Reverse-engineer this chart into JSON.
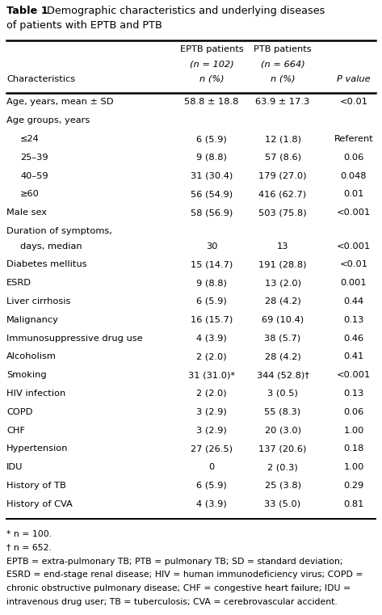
{
  "title_bold": "Table 1",
  "title_rest": "Demographic characteristics and underlying diseases\nof patients with EPTB and PTB",
  "col_headers_line1": [
    "EPTB patients",
    "PTB patients",
    ""
  ],
  "col_headers_line2": [
    "(n = 102)",
    "(n = 664)",
    ""
  ],
  "col_headers_line3": [
    "n (%)",
    "n (%)",
    "P value"
  ],
  "col_label": "Characteristics",
  "rows": [
    {
      "label": "Age, years, mean ± SD",
      "indent": 0,
      "eptb": "58.8 ± 18.8",
      "ptb": "63.9 ± 17.3",
      "pval": "<0.01",
      "multiline": false,
      "group_header": false
    },
    {
      "label": "Age groups, years",
      "indent": 0,
      "eptb": "",
      "ptb": "",
      "pval": "",
      "multiline": false,
      "group_header": true
    },
    {
      "label": "≤24",
      "indent": 1,
      "eptb": "6 (5.9)",
      "ptb": "12 (1.8)",
      "pval": "Referent",
      "multiline": false,
      "group_header": false
    },
    {
      "label": "25–39",
      "indent": 1,
      "eptb": "9 (8.8)",
      "ptb": "57 (8.6)",
      "pval": "0.06",
      "multiline": false,
      "group_header": false
    },
    {
      "label": "40–59",
      "indent": 1,
      "eptb": "31 (30.4)",
      "ptb": "179 (27.0)",
      "pval": "0.048",
      "multiline": false,
      "group_header": false
    },
    {
      "label": "≥60",
      "indent": 1,
      "eptb": "56 (54.9)",
      "ptb": "416 (62.7)",
      "pval": "0.01",
      "multiline": false,
      "group_header": false
    },
    {
      "label": "Male sex",
      "indent": 0,
      "eptb": "58 (56.9)",
      "ptb": "503 (75.8)",
      "pval": "<0.001",
      "multiline": false,
      "group_header": false
    },
    {
      "label": "Duration of symptoms,",
      "label2": "   days, median",
      "indent": 0,
      "eptb": "30",
      "ptb": "13",
      "pval": "<0.001",
      "multiline": true,
      "group_header": false
    },
    {
      "label": "Diabetes mellitus",
      "indent": 0,
      "eptb": "15 (14.7)",
      "ptb": "191 (28.8)",
      "pval": "<0.01",
      "multiline": false,
      "group_header": false
    },
    {
      "label": "ESRD",
      "indent": 0,
      "eptb": "9 (8.8)",
      "ptb": "13 (2.0)",
      "pval": "0.001",
      "multiline": false,
      "group_header": false
    },
    {
      "label": "Liver cirrhosis",
      "indent": 0,
      "eptb": "6 (5.9)",
      "ptb": "28 (4.2)",
      "pval": "0.44",
      "multiline": false,
      "group_header": false
    },
    {
      "label": "Malignancy",
      "indent": 0,
      "eptb": "16 (15.7)",
      "ptb": "69 (10.4)",
      "pval": "0.13",
      "multiline": false,
      "group_header": false
    },
    {
      "label": "Immunosuppressive drug use",
      "indent": 0,
      "eptb": "4 (3.9)",
      "ptb": "38 (5.7)",
      "pval": "0.46",
      "multiline": false,
      "group_header": false
    },
    {
      "label": "Alcoholism",
      "indent": 0,
      "eptb": "2 (2.0)",
      "ptb": "28 (4.2)",
      "pval": "0.41",
      "multiline": false,
      "group_header": false
    },
    {
      "label": "Smoking",
      "indent": 0,
      "eptb": "31 (31.0)*",
      "ptb": "344 (52.8)†",
      "pval": "<0.001",
      "multiline": false,
      "group_header": false
    },
    {
      "label": "HIV infection",
      "indent": 0,
      "eptb": "2 (2.0)",
      "ptb": "3 (0.5)",
      "pval": "0.13",
      "multiline": false,
      "group_header": false
    },
    {
      "label": "COPD",
      "indent": 0,
      "eptb": "3 (2.9)",
      "ptb": "55 (8.3)",
      "pval": "0.06",
      "multiline": false,
      "group_header": false
    },
    {
      "label": "CHF",
      "indent": 0,
      "eptb": "3 (2.9)",
      "ptb": "20 (3.0)",
      "pval": "1.00",
      "multiline": false,
      "group_header": false
    },
    {
      "label": "Hypertension",
      "indent": 0,
      "eptb": "27 (26.5)",
      "ptb": "137 (20.6)",
      "pval": "0.18",
      "multiline": false,
      "group_header": false
    },
    {
      "label": "IDU",
      "indent": 0,
      "eptb": "0",
      "ptb": "2 (0.3)",
      "pval": "1.00",
      "multiline": false,
      "group_header": false
    },
    {
      "label": "History of TB",
      "indent": 0,
      "eptb": "6 (5.9)",
      "ptb": "25 (3.8)",
      "pval": "0.29",
      "multiline": false,
      "group_header": false
    },
    {
      "label": "History of CVA",
      "indent": 0,
      "eptb": "4 (3.9)",
      "ptb": "33 (5.0)",
      "pval": "0.81",
      "multiline": false,
      "group_header": false
    }
  ],
  "footnote1": "* n = 100.",
  "footnote2": "† n = 652.",
  "footnote3": "EPTB = extra-pulmonary TB; PTB = pulmonary TB; SD = standard deviation;\nESRD = end-stage renal disease; HIV = human immunodeficiency virus; COPD =\nchronic obstructive pulmonary disease; CHF = congestive heart failure; IDU =\nintravenous drug user; TB = tuberculosis; CVA = cerebrovascular accident.",
  "bg_color": "#ffffff",
  "text_color": "#000000",
  "font_size": 8.2,
  "title_font_size": 9.2,
  "footnote_font_size": 7.8
}
